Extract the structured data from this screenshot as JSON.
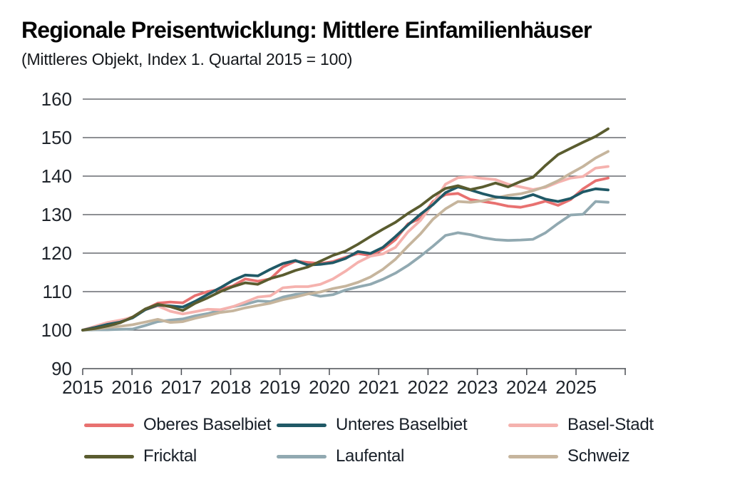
{
  "page": {
    "background": "#ffffff"
  },
  "chart_data": {
    "type": "line",
    "title": "Regionale Preisentwicklung: Mittlere Einfamilienhäuser",
    "subtitle": "(Mittleres Objekt, Index 1. Quartal 2015 = 100)",
    "x_frequency": "quarterly",
    "x_start": "2015-Q1",
    "x_end": "2025-Q3",
    "x_tick_labels": [
      "2015",
      "2016",
      "2017",
      "2018",
      "2019",
      "2020",
      "2021",
      "2022",
      "2023",
      "2024",
      "2025"
    ],
    "y_ticks": [
      90,
      100,
      110,
      120,
      130,
      140,
      150,
      160
    ],
    "ylim": [
      90,
      160
    ],
    "grid": "horizontal",
    "legend_position": "bottom",
    "axis_color": "#4a4e54",
    "label_color": "#1f242b",
    "draw_order": [
      0,
      4,
      2,
      5,
      1,
      3
    ],
    "series": [
      {
        "name": "Oberes Baselbiet",
        "color": "#E87170",
        "values": [
          100,
          100.9,
          101.8,
          102.4,
          103.4,
          105.4,
          107.0,
          107.3,
          107.1,
          109.0,
          110.0,
          110.6,
          111.5,
          113.3,
          112.7,
          113.3,
          116.4,
          117.9,
          117.6,
          117.3,
          117.8,
          118.9,
          119.9,
          119.4,
          121.0,
          123.5,
          127.6,
          129.0,
          133.4,
          135.2,
          135.5,
          133.9,
          133.4,
          132.9,
          132.2,
          131.9,
          132.6,
          133.5,
          132.4,
          133.9,
          136.7,
          138.8,
          139.5
        ]
      },
      {
        "name": "Unteres Baselbiet",
        "color": "#205966",
        "values": [
          100,
          100.7,
          101.5,
          102.1,
          103.2,
          105.3,
          106.5,
          106.3,
          106.0,
          107.5,
          109.3,
          111.0,
          112.9,
          114.3,
          114.1,
          115.8,
          117.3,
          118.1,
          116.9,
          117.1,
          117.5,
          118.6,
          120.4,
          119.9,
          121.5,
          124.3,
          127.3,
          130.1,
          132.6,
          135.7,
          137.2,
          136.4,
          135.4,
          134.6,
          134.3,
          134.2,
          135.2,
          134.0,
          133.4,
          134.2,
          135.9,
          136.7,
          136.4
        ]
      },
      {
        "name": "Basel-Stadt",
        "color": "#F5B2AE",
        "values": [
          100,
          101.0,
          102.0,
          102.6,
          103.3,
          105.3,
          106.3,
          104.9,
          104.2,
          104.8,
          105.4,
          105.3,
          106.1,
          107.3,
          108.6,
          108.9,
          111.0,
          111.3,
          111.3,
          111.9,
          113.3,
          115.3,
          117.6,
          119.2,
          119.8,
          121.5,
          125.5,
          128.5,
          132.8,
          137.9,
          139.6,
          139.8,
          139.4,
          139.1,
          137.9,
          137.2,
          136.5,
          137.1,
          138.4,
          139.5,
          139.9,
          142.1,
          142.5
        ]
      },
      {
        "name": "Fricktal",
        "color": "#5A5C2F",
        "values": [
          100,
          100.4,
          101.1,
          101.9,
          103.4,
          105.5,
          106.7,
          106.1,
          105.1,
          107.0,
          108.4,
          110.0,
          111.3,
          112.3,
          111.9,
          113.4,
          114.3,
          115.5,
          116.4,
          117.9,
          119.4,
          120.5,
          122.3,
          124.3,
          126.2,
          128.0,
          130.3,
          132.3,
          134.8,
          136.8,
          137.5,
          136.5,
          137.2,
          138.2,
          137.2,
          138.6,
          139.7,
          142.8,
          145.6,
          147.2,
          148.8,
          150.3,
          152.3
        ]
      },
      {
        "name": "Laufental",
        "color": "#91A9B1",
        "values": [
          100,
          100.1,
          100.1,
          100.2,
          100.3,
          101.2,
          102.2,
          102.6,
          102.9,
          103.7,
          104.3,
          105.2,
          106.1,
          106.7,
          107.6,
          107.4,
          108.6,
          109.3,
          109.5,
          108.8,
          109.2,
          110.4,
          111.2,
          111.9,
          113.2,
          114.8,
          116.8,
          119.2,
          121.8,
          124.6,
          125.3,
          124.8,
          124.0,
          123.5,
          123.3,
          123.4,
          123.6,
          125.3,
          127.7,
          129.9,
          130.1,
          133.4,
          133.2
        ]
      },
      {
        "name": "Schweiz",
        "color": "#C6B59D",
        "values": [
          100,
          100.3,
          100.7,
          101.0,
          101.4,
          102.1,
          102.8,
          102.0,
          102.2,
          103.1,
          103.8,
          104.6,
          105.0,
          105.8,
          106.4,
          107.0,
          107.9,
          108.6,
          109.4,
          109.9,
          110.8,
          111.4,
          112.4,
          113.8,
          115.8,
          118.4,
          121.8,
          125.0,
          128.8,
          131.5,
          133.4,
          133.2,
          133.6,
          134.3,
          135.0,
          135.4,
          136.2,
          137.3,
          138.8,
          140.7,
          142.5,
          144.7,
          146.4
        ]
      }
    ]
  }
}
